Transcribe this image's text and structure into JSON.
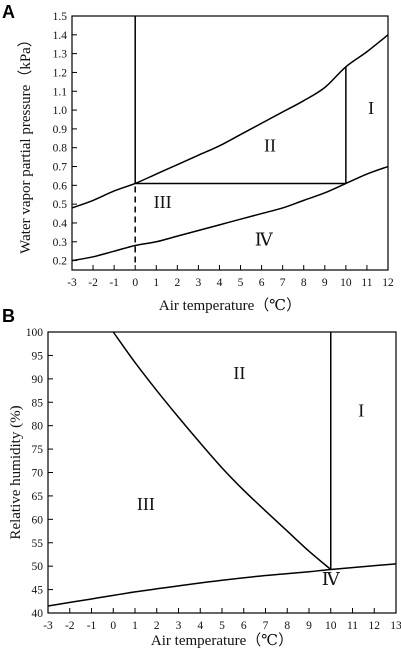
{
  "chart_data": [
    {
      "panel": "A",
      "type": "line",
      "xlabel": "Air temperature（℃）",
      "ylabel": "Water vapor partial pressure（kPa）",
      "xlim": [
        -3,
        12
      ],
      "ylim": [
        0.15,
        1.5
      ],
      "x_ticks": [
        "-3",
        "-2",
        "-1",
        "0",
        "1",
        "2",
        "3",
        "4",
        "5",
        "6",
        "7",
        "8",
        "9",
        "10",
        "11",
        "12"
      ],
      "y_ticks": [
        "0.2",
        "0.3",
        "0.4",
        "0.5",
        "0.6",
        "0.7",
        "0.8",
        "0.9",
        "1.0",
        "1.1",
        "1.2",
        "1.3",
        "1.4",
        "1.5"
      ],
      "series": [
        {
          "x": [
            -3,
            -2,
            -1,
            0,
            1,
            2,
            3,
            4,
            5,
            6,
            7,
            8,
            9,
            10,
            11,
            12
          ],
          "y": [
            0.48,
            0.52,
            0.57,
            0.61,
            0.66,
            0.71,
            0.76,
            0.81,
            0.87,
            0.93,
            0.99,
            1.05,
            1.12,
            1.23,
            1.31,
            1.4
          ]
        },
        {
          "x": [
            -3,
            -2,
            -1,
            0,
            1,
            2,
            3,
            4,
            5,
            6,
            7,
            8,
            9,
            10,
            11,
            12
          ],
          "y": [
            0.2,
            0.22,
            0.25,
            0.28,
            0.3,
            0.33,
            0.36,
            0.39,
            0.42,
            0.45,
            0.48,
            0.52,
            0.56,
            0.61,
            0.66,
            0.7
          ]
        }
      ],
      "segments": [
        {
          "x": [
            0,
            0
          ],
          "y": [
            0.61,
            1.5
          ],
          "style": "solid"
        },
        {
          "x": [
            0,
            0
          ],
          "y": [
            0.19,
            0.61
          ],
          "style": "dashed"
        },
        {
          "x": [
            0,
            10
          ],
          "y": [
            0.61,
            0.61
          ],
          "style": "solid"
        },
        {
          "x": [
            10,
            10
          ],
          "y": [
            0.61,
            1.23
          ],
          "style": "solid"
        }
      ],
      "regions": [
        {
          "label": "I",
          "x": 11.2,
          "y": 0.98
        },
        {
          "label": "II",
          "x": 6.4,
          "y": 0.78
        },
        {
          "label": "III",
          "x": 1.3,
          "y": 0.48
        },
        {
          "label": "Ⅳ",
          "x": 6.1,
          "y": 0.28
        }
      ]
    },
    {
      "panel": "B",
      "type": "line",
      "xlabel": "Air temperature（℃）",
      "ylabel": "Relative humidity (%)",
      "xlim": [
        -3,
        13
      ],
      "ylim": [
        40,
        100
      ],
      "x_ticks": [
        "-3",
        "-2",
        "-1",
        "0",
        "1",
        "2",
        "3",
        "4",
        "5",
        "6",
        "7",
        "8",
        "9",
        "10",
        "11",
        "12",
        "13"
      ],
      "y_ticks": [
        "40",
        "45",
        "50",
        "55",
        "60",
        "65",
        "70",
        "75",
        "80",
        "85",
        "90",
        "95",
        "100"
      ],
      "series": [
        {
          "x": [
            -3,
            -1,
            1,
            3,
            5,
            7,
            9,
            10,
            13
          ],
          "y": [
            41.5,
            43.0,
            44.5,
            45.8,
            47.0,
            48.0,
            48.8,
            49.3,
            50.5
          ]
        },
        {
          "x": [
            0,
            1,
            2,
            3,
            4,
            5,
            6,
            7,
            8,
            9,
            10
          ],
          "y": [
            100,
            93.5,
            87.5,
            81.8,
            76.3,
            71.0,
            66.2,
            61.8,
            57.5,
            53.2,
            49.3
          ]
        }
      ],
      "segments": [
        {
          "x": [
            10,
            10
          ],
          "y": [
            49.3,
            100
          ],
          "style": "solid"
        }
      ],
      "regions": [
        {
          "label": "I",
          "x": 11.4,
          "y": 82
        },
        {
          "label": "II",
          "x": 5.8,
          "y": 90
        },
        {
          "label": "III",
          "x": 1.5,
          "y": 62
        },
        {
          "label": "Ⅳ",
          "x": 10.0,
          "y": 46
        }
      ]
    }
  ]
}
